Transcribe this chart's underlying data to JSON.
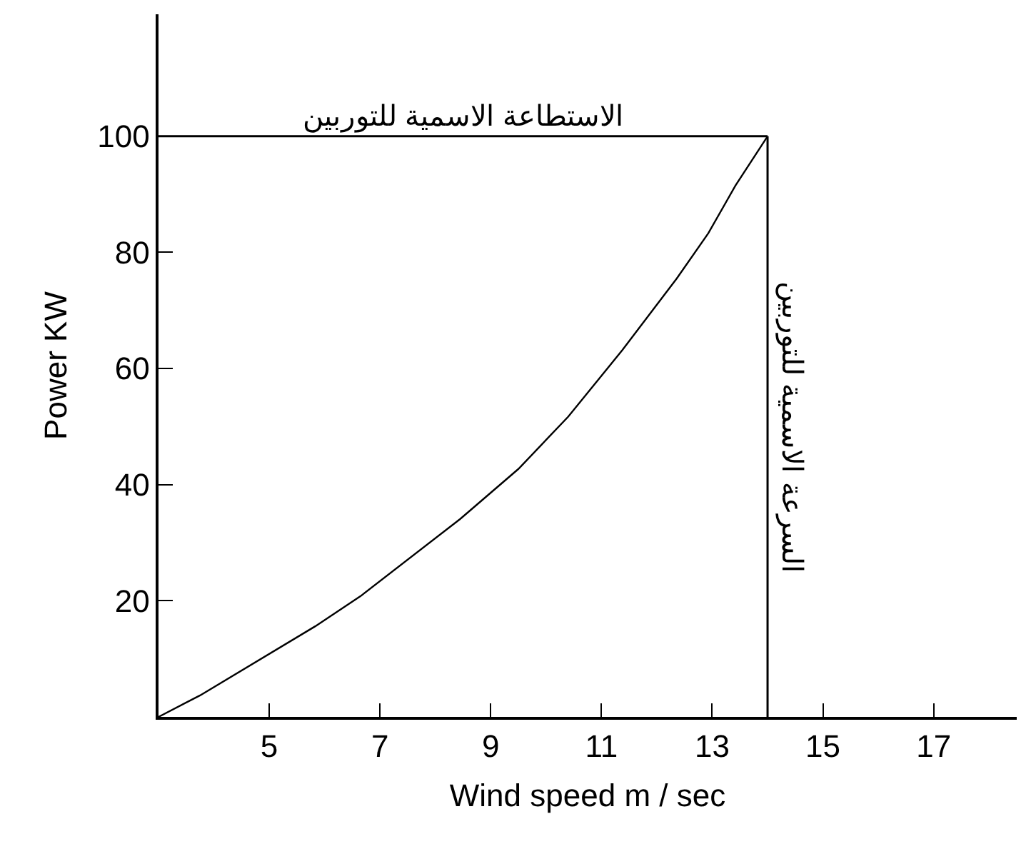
{
  "chart_data": {
    "type": "line",
    "xlabel": "Wind speed m / sec",
    "ylabel": "Power KW",
    "x": [
      3,
      3.75,
      5.83,
      6.65,
      8.45,
      9.5,
      10.4,
      11.38,
      12.36,
      12.93,
      13.42,
      14
    ],
    "series": [
      {
        "color": "#000000",
        "values": [
          0,
          3.7,
          15.6,
          20.8,
          34.1,
          42.7,
          51.7,
          63.2,
          75.5,
          83.3,
          91.5,
          100
        ]
      }
    ],
    "xlim": [
      3,
      18.5
    ],
    "ylim": [
      0,
      121
    ],
    "xticks": [
      5,
      7,
      9,
      11,
      13,
      15,
      17
    ],
    "yticks": [
      20,
      40,
      60,
      80,
      100
    ],
    "ref_lines": [
      {
        "axis": "y",
        "value": 100,
        "label": "الاستطاعة الاسمية للتوربين",
        "color": "#000000"
      },
      {
        "axis": "x",
        "value": 14,
        "label": "السرعة الاسمية للتوربين",
        "color": "#000000"
      }
    ],
    "marker": "none",
    "line_style": "solid"
  }
}
